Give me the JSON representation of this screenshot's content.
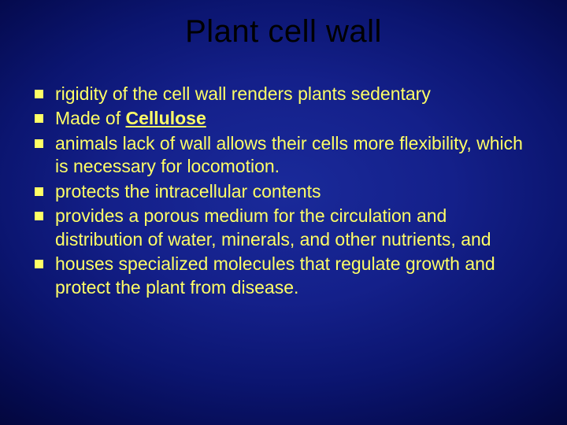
{
  "slide": {
    "title": "Plant cell wall",
    "title_color": "#000000",
    "title_fontsize": 40,
    "background": {
      "type": "radial",
      "center_color": "#1a2a9a",
      "edge_color": "#020535"
    },
    "bullet_color": "#ffff66",
    "text_color": "#ffff66",
    "text_fontsize": 23,
    "bullets": [
      {
        "prefix": "",
        "text": "rigidity of the cell wall renders plants sedentary",
        "bold_underline": ""
      },
      {
        "prefix": "Made of ",
        "text": "",
        "bold_underline": "Cellulose"
      },
      {
        "prefix": "",
        "text": " animals lack of wall allows their cells more flexibility, which is necessary for locomotion.",
        "bold_underline": ""
      },
      {
        "prefix": "",
        "text": "protects the intracellular contents",
        "bold_underline": ""
      },
      {
        "prefix": "",
        "text": "provides a porous medium for the circulation and distribution of water, minerals, and other nutrients, and",
        "bold_underline": ""
      },
      {
        "prefix": "",
        "text": "houses specialized molecules that regulate growth and protect the plant from disease.",
        "bold_underline": ""
      }
    ]
  }
}
